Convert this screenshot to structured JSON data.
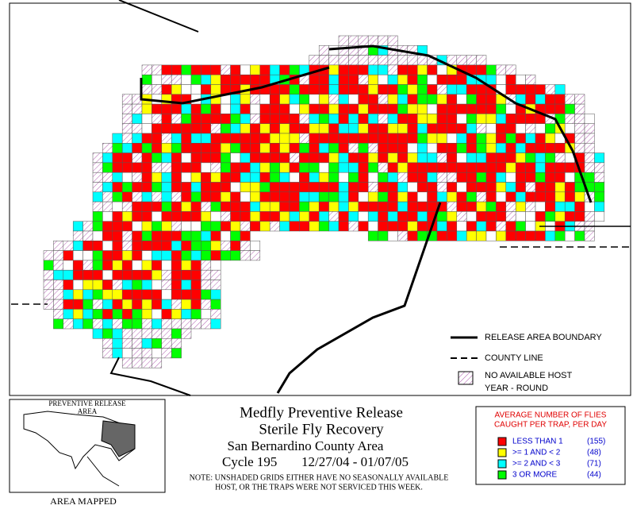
{
  "map_legend": {
    "boundary": "RELEASE AREA BOUNDARY",
    "county": "COUNTY LINE",
    "no_host_1": "NO AVAILABLE HOST",
    "no_host_2": "YEAR - ROUND"
  },
  "inset": {
    "title_1": "PREVENTIVE RELEASE",
    "title_2": "AREA",
    "caption": "AREA MAPPED"
  },
  "title": {
    "line_1": "Medfly Preventive Release",
    "line_2": "Sterile Fly Recovery",
    "line_3": "San Bernardino County Area",
    "cycle": "Cycle 195",
    "dates": "12/27/04 - 01/07/05",
    "note_1": "NOTE: UNSHADED GRIDS EITHER HAVE NO SEASONALLY AVAILABLE",
    "note_2": "HOST, OR THE TRAPS WERE NOT SERVICED THIS WEEK."
  },
  "legend": {
    "header_1": "AVERAGE NUMBER OF FLIES",
    "header_2": "CAUGHT PER TRAP, PER DAY",
    "items": [
      {
        "label": "LESS THAN 1",
        "count": "(155)",
        "color": "#ff0000"
      },
      {
        "label": ">= 1 AND < 2",
        "count": "(48)",
        "color": "#ffff00"
      },
      {
        "label": ">= 2 AND < 3",
        "count": "(71)",
        "color": "#00ffff"
      },
      {
        "label": "3 OR MORE",
        "count": "(44)",
        "color": "#00ff00"
      }
    ]
  }
}
